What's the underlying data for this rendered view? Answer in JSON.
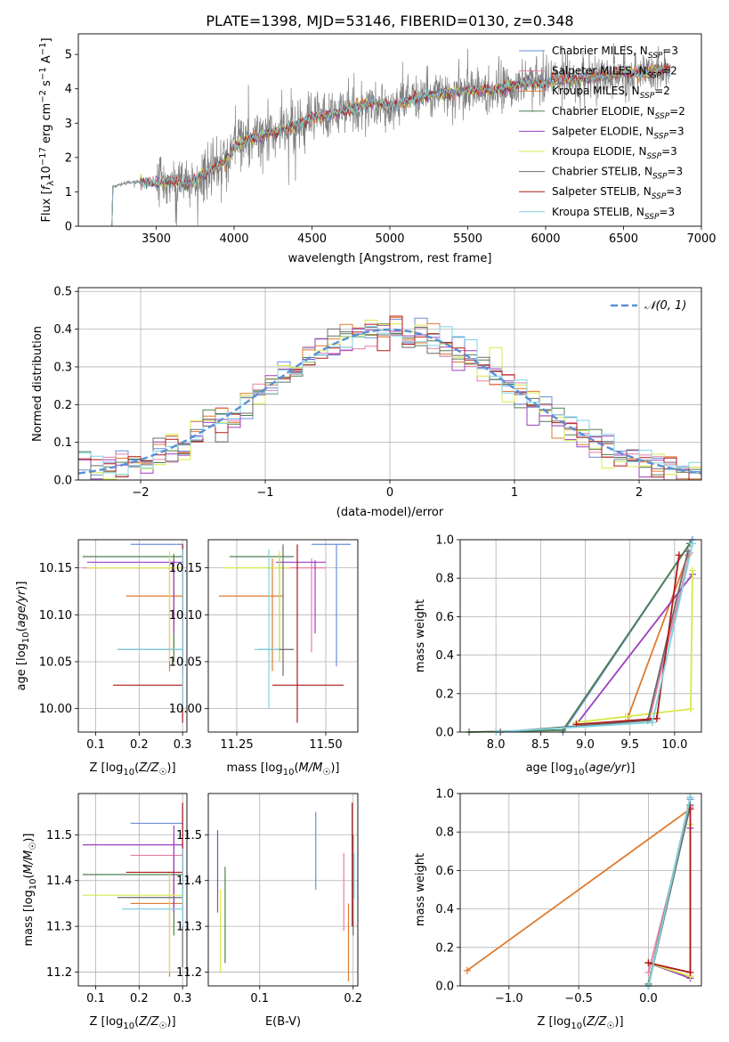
{
  "figure_title": "PLATE=1398, MJD=53146, FIBERID=0130, z=0.348",
  "colors": {
    "chabrier_miles": "#6a8fd8",
    "salpeter_miles": "#e77fa9",
    "kroupa_miles": "#e07a2e",
    "chabrier_elodie": "#4f7f4f",
    "salpeter_elodie": "#9b3fbf",
    "kroupa_elodie": "#d8e84a",
    "chabrier_stelib": "#6b6b6b",
    "salpeter_stelib": "#b01818",
    "kroupa_stelib": "#7fd3e0",
    "data": "#808080",
    "gaussian": "#5a8fd6"
  },
  "legend_spectrum": [
    {
      "key": "chabrier_miles",
      "pre": "Chabrier MILES, N",
      "sub": "SSP",
      "post": "=3"
    },
    {
      "key": "salpeter_miles",
      "pre": "Salpeter MILES, N",
      "sub": "SSP",
      "post": "=2"
    },
    {
      "key": "kroupa_miles",
      "pre": "Kroupa MILES, N",
      "sub": "SSP",
      "post": "=2"
    },
    {
      "key": "chabrier_elodie",
      "pre": "Chabrier ELODIE, N",
      "sub": "SSP",
      "post": "=2"
    },
    {
      "key": "salpeter_elodie",
      "pre": "Salpeter ELODIE, N",
      "sub": "SSP",
      "post": "=3"
    },
    {
      "key": "kroupa_elodie",
      "pre": "Kroupa ELODIE, N",
      "sub": "SSP",
      "post": "=3"
    },
    {
      "key": "chabrier_stelib",
      "pre": "Chabrier STELIB, N",
      "sub": "SSP",
      "post": "=3"
    },
    {
      "key": "salpeter_stelib",
      "pre": "Salpeter STELIB, N",
      "sub": "SSP",
      "post": "=3"
    },
    {
      "key": "kroupa_stelib",
      "pre": "Kroupa STELIB, N",
      "sub": "SSP",
      "post": "=3"
    }
  ],
  "chart_data": [
    {
      "id": "spectrum",
      "type": "line",
      "title": "PLATE=1398, MJD=53146, FIBERID=0130, z=0.348",
      "xlabel": "wavelength [Angstrom, rest frame]",
      "ylabel": "Flux [f_λ 10^-17 erg cm^-2 s^-1 A^-1]",
      "xlim": [
        3000,
        7000
      ],
      "ylim": [
        0,
        5.6
      ],
      "xticks": [
        3500,
        4000,
        4500,
        5000,
        5500,
        6000,
        6500,
        7000
      ],
      "yticks": [
        0,
        1,
        2,
        3,
        4,
        5
      ],
      "grid": false,
      "legend": "top-right",
      "data_range": [
        3210,
        6800
      ],
      "continuum": [
        [
          3210,
          0.0
        ],
        [
          3215,
          0.0
        ],
        [
          3220,
          1.15
        ],
        [
          3300,
          1.25
        ],
        [
          3400,
          1.3
        ],
        [
          3500,
          1.25
        ],
        [
          3600,
          1.35
        ],
        [
          3700,
          1.2
        ],
        [
          3800,
          1.5
        ],
        [
          3900,
          1.75
        ],
        [
          3950,
          1.9
        ],
        [
          4000,
          2.3
        ],
        [
          4100,
          2.55
        ],
        [
          4200,
          2.7
        ],
        [
          4300,
          2.8
        ],
        [
          4400,
          2.95
        ],
        [
          4500,
          3.15
        ],
        [
          4600,
          3.25
        ],
        [
          4700,
          3.35
        ],
        [
          4800,
          3.5
        ],
        [
          4900,
          3.6
        ],
        [
          5000,
          3.5
        ],
        [
          5100,
          3.65
        ],
        [
          5200,
          3.75
        ],
        [
          5300,
          3.85
        ],
        [
          5400,
          3.9
        ],
        [
          5500,
          3.95
        ],
        [
          5600,
          3.95
        ],
        [
          5700,
          4.0
        ],
        [
          5800,
          4.1
        ],
        [
          5900,
          4.2
        ],
        [
          6000,
          4.15
        ],
        [
          6100,
          4.3
        ],
        [
          6200,
          4.25
        ],
        [
          6300,
          4.35
        ],
        [
          6400,
          4.4
        ],
        [
          6500,
          4.5
        ],
        [
          6600,
          4.45
        ],
        [
          6700,
          4.55
        ],
        [
          6800,
          4.6
        ]
      ]
    },
    {
      "id": "residuals",
      "type": "line",
      "xlabel": "(data-model)/error",
      "ylabel": "Normed distribution",
      "xlim": [
        -2.5,
        2.5
      ],
      "ylim": [
        0,
        0.51
      ],
      "xticks": [
        -2,
        -1,
        0,
        1,
        2
      ],
      "xtick_labels": [
        "−2",
        "−1",
        "0",
        "1",
        "2"
      ],
      "yticks": [
        0.0,
        0.1,
        0.2,
        0.3,
        0.4,
        0.5
      ],
      "grid": true,
      "legend": "top-right",
      "legend_label": "𝒩(0, 1)",
      "bin_width": 0.1,
      "gaussian": {
        "mu": 0,
        "sigma": 1
      }
    },
    {
      "id": "age_vs_Z",
      "type": "scatter",
      "xlabel": "Z [log10(Z/Z☉)]",
      "ylabel": "age [log10(age/yr)]",
      "xlim": [
        0.06,
        0.31
      ],
      "ylim": [
        9.975,
        10.18
      ],
      "xticks": [
        0.1,
        0.2,
        0.3
      ],
      "yticks": [
        10.0,
        10.05,
        10.1,
        10.15
      ],
      "grid": true,
      "points": [
        {
          "s": "chabrier_miles",
          "x": 0.3,
          "xlo": 0.18,
          "xhi": 0.3,
          "y": 10.175,
          "ylo": 10.045,
          "yhi": 10.175
        },
        {
          "s": "salpeter_miles",
          "x": 0.28,
          "xlo": 0.07,
          "xhi": 0.3,
          "y": 10.15,
          "ylo": 10.06,
          "yhi": 10.16
        },
        {
          "s": "kroupa_miles",
          "x": 0.27,
          "xlo": 0.17,
          "xhi": 0.3,
          "y": 10.12,
          "ylo": 10.04,
          "yhi": 10.16
        },
        {
          "s": "chabrier_elodie",
          "x": 0.28,
          "xlo": 0.07,
          "xhi": 0.3,
          "y": 10.162,
          "ylo": 10.05,
          "yhi": 10.165
        },
        {
          "s": "salpeter_elodie",
          "x": 0.28,
          "xlo": 0.08,
          "xhi": 0.3,
          "y": 10.156,
          "ylo": 10.08,
          "yhi": 10.158
        },
        {
          "s": "kroupa_elodie",
          "x": 0.27,
          "xlo": 0.08,
          "xhi": 0.3,
          "y": 10.15,
          "ylo": 10.05,
          "yhi": 10.168
        },
        {
          "s": "chabrier_stelib",
          "x": 0.3,
          "xlo": 0.15,
          "xhi": 0.3,
          "y": 10.063,
          "ylo": 10.035,
          "yhi": 10.175
        },
        {
          "s": "salpeter_stelib",
          "x": 0.3,
          "xlo": 0.14,
          "xhi": 0.3,
          "y": 10.025,
          "ylo": 9.985,
          "yhi": 10.175
        },
        {
          "s": "kroupa_stelib",
          "x": 0.3,
          "xlo": 0.15,
          "xhi": 0.3,
          "y": 10.063,
          "ylo": 10.0,
          "yhi": 10.17
        }
      ]
    },
    {
      "id": "age_vs_mass",
      "type": "scatter",
      "xlabel": "mass [log10(M/M☉)]",
      "ylabel": "",
      "xlim": [
        11.17,
        11.59
      ],
      "ylim": [
        9.975,
        10.18
      ],
      "xticks": [
        11.25,
        11.5
      ],
      "yticks": [
        10.0,
        10.05,
        10.1,
        10.15
      ],
      "grid": true,
      "points": [
        {
          "s": "chabrier_miles",
          "x": 11.53,
          "xlo": 11.46,
          "xhi": 11.57,
          "y": 10.175,
          "ylo": 10.045,
          "yhi": 10.175
        },
        {
          "s": "salpeter_miles",
          "x": 11.46,
          "xlo": 11.34,
          "xhi": 11.5,
          "y": 10.15,
          "ylo": 10.06,
          "yhi": 10.16
        },
        {
          "s": "kroupa_miles",
          "x": 11.35,
          "xlo": 11.2,
          "xhi": 11.38,
          "y": 10.12,
          "ylo": 10.04,
          "yhi": 10.16
        },
        {
          "s": "chabrier_elodie",
          "x": 11.37,
          "xlo": 11.23,
          "xhi": 11.41,
          "y": 10.162,
          "ylo": 10.05,
          "yhi": 10.165
        },
        {
          "s": "salpeter_elodie",
          "x": 11.47,
          "xlo": 11.36,
          "xhi": 11.5,
          "y": 10.156,
          "ylo": 10.08,
          "yhi": 10.158
        },
        {
          "s": "kroupa_elodie",
          "x": 11.37,
          "xlo": 11.21,
          "xhi": 11.4,
          "y": 10.15,
          "ylo": 10.05,
          "yhi": 10.168
        },
        {
          "s": "chabrier_stelib",
          "x": 11.38,
          "xlo": 11.31,
          "xhi": 11.41,
          "y": 10.063,
          "ylo": 10.035,
          "yhi": 10.175
        },
        {
          "s": "salpeter_stelib",
          "x": 11.42,
          "xlo": 11.35,
          "xhi": 11.55,
          "y": 10.025,
          "ylo": 9.985,
          "yhi": 10.175
        },
        {
          "s": "kroupa_stelib",
          "x": 11.34,
          "xlo": 11.3,
          "xhi": 11.37,
          "y": 10.063,
          "ylo": 10.0,
          "yhi": 10.17
        }
      ]
    },
    {
      "id": "mass_weight_vs_age",
      "type": "line",
      "xlabel": "age [log10(age/yr)]",
      "ylabel": "mass weight",
      "xlim": [
        7.6,
        10.3
      ],
      "ylim": [
        0,
        1
      ],
      "xticks": [
        8.0,
        8.5,
        9.0,
        9.5,
        10.0
      ],
      "yticks": [
        0.0,
        0.2,
        0.4,
        0.6,
        0.8,
        1.0
      ],
      "grid": true,
      "series": [
        {
          "s": "chabrier_miles",
          "x": [
            8.75,
            10.2
          ],
          "y": [
            0.0,
            1.0
          ]
        },
        {
          "s": "salpeter_miles",
          "x": [
            9.72,
            10.17
          ],
          "y": [
            0.07,
            0.93
          ]
        },
        {
          "s": "kroupa_miles",
          "x": [
            9.48,
            10.15
          ],
          "y": [
            0.08,
            0.92
          ]
        },
        {
          "s": "chabrier_elodie",
          "x": [
            7.7,
            8.75,
            10.17
          ],
          "y": [
            0.0,
            0.01,
            0.98
          ]
        },
        {
          "s": "salpeter_elodie",
          "x": [
            8.9,
            10.2
          ],
          "y": [
            0.04,
            0.82
          ]
        },
        {
          "s": "kroupa_elodie",
          "x": [
            8.9,
            9.45,
            10.18,
            10.2
          ],
          "y": [
            0.05,
            0.08,
            0.12,
            0.84
          ]
        },
        {
          "s": "chabrier_stelib",
          "x": [
            8.05,
            9.7,
            10.15
          ],
          "y": [
            0.0,
            0.06,
            0.94
          ]
        },
        {
          "s": "salpeter_stelib",
          "x": [
            8.9,
            9.8,
            10.05
          ],
          "y": [
            0.04,
            0.07,
            0.92
          ]
        },
        {
          "s": "kroupa_stelib",
          "x": [
            8.0,
            9.75,
            10.2
          ],
          "y": [
            0.0,
            0.05,
            0.98
          ]
        }
      ]
    },
    {
      "id": "mass_vs_Z",
      "type": "scatter",
      "xlabel": "Z [log10(Z/Z☉)]",
      "ylabel": "mass [log10(M/M☉)]",
      "xlim": [
        0.06,
        0.31
      ],
      "ylim": [
        11.17,
        11.59
      ],
      "xticks": [
        0.1,
        0.2,
        0.3
      ],
      "yticks": [
        11.2,
        11.3,
        11.4,
        11.5
      ],
      "grid": true,
      "points": [
        {
          "s": "chabrier_miles",
          "x": 0.3,
          "xlo": 0.18,
          "xhi": 0.3,
          "y": 11.525,
          "ylo": 11.46,
          "yhi": 11.56
        },
        {
          "s": "salpeter_miles",
          "x": 0.28,
          "xlo": 0.18,
          "xhi": 0.3,
          "y": 11.455,
          "ylo": 11.33,
          "yhi": 11.5
        },
        {
          "s": "kroupa_miles",
          "x": 0.27,
          "xlo": 0.18,
          "xhi": 0.3,
          "y": 11.35,
          "ylo": 11.19,
          "yhi": 11.42
        },
        {
          "s": "chabrier_elodie",
          "x": 0.28,
          "xlo": 0.07,
          "xhi": 0.3,
          "y": 11.413,
          "ylo": 11.28,
          "yhi": 11.45
        },
        {
          "s": "salpeter_elodie",
          "x": 0.28,
          "xlo": 0.07,
          "xhi": 0.3,
          "y": 11.478,
          "ylo": 11.33,
          "yhi": 11.52
        },
        {
          "s": "kroupa_elodie",
          "x": 0.27,
          "xlo": 0.07,
          "xhi": 0.3,
          "y": 11.368,
          "ylo": 11.2,
          "yhi": 11.42
        },
        {
          "s": "chabrier_stelib",
          "x": 0.3,
          "xlo": 0.15,
          "xhi": 0.3,
          "y": 11.363,
          "ylo": 11.21,
          "yhi": 11.47
        },
        {
          "s": "salpeter_stelib",
          "x": 0.3,
          "xlo": 0.17,
          "xhi": 0.3,
          "y": 11.418,
          "ylo": 11.38,
          "yhi": 11.57
        },
        {
          "s": "kroupa_stelib",
          "x": 0.3,
          "xlo": 0.16,
          "xhi": 0.3,
          "y": 11.338,
          "ylo": 11.3,
          "yhi": 11.47
        }
      ]
    },
    {
      "id": "mass_vs_ebv",
      "type": "scatter",
      "xlabel": "E(B-V)",
      "ylabel": "",
      "xlim": [
        0.045,
        0.205
      ],
      "ylim": [
        11.17,
        11.59
      ],
      "xticks": [
        0.1,
        0.2
      ],
      "yticks": [
        11.2,
        11.3,
        11.4,
        11.5
      ],
      "grid": true,
      "points": [
        {
          "s": "chabrier_miles",
          "x": 0.16,
          "ylo": 11.38,
          "yhi": 11.55
        },
        {
          "s": "salpeter_miles",
          "x": 0.19,
          "ylo": 11.29,
          "yhi": 11.46
        },
        {
          "s": "kroupa_miles",
          "x": 0.195,
          "ylo": 11.18,
          "yhi": 11.35
        },
        {
          "s": "chabrier_elodie",
          "x": 0.063,
          "ylo": 11.22,
          "yhi": 11.43
        },
        {
          "s": "salpeter_elodie",
          "x": 0.055,
          "ylo": 11.33,
          "yhi": 11.51
        },
        {
          "s": "kroupa_elodie",
          "x": 0.058,
          "ylo": 11.2,
          "yhi": 11.38
        },
        {
          "s": "chabrier_stelib",
          "x": 0.2,
          "ylo": 11.28,
          "yhi": 11.5
        },
        {
          "s": "salpeter_stelib",
          "x": 0.199,
          "ylo": 11.3,
          "yhi": 11.57
        },
        {
          "s": "kroupa_stelib",
          "x": 0.201,
          "ylo": 11.36,
          "yhi": 11.46
        }
      ]
    },
    {
      "id": "mass_weight_vs_Z",
      "type": "line",
      "xlabel": "Z [log10(Z/Z☉)]",
      "ylabel": "mass weight",
      "xlim": [
        -1.35,
        0.38
      ],
      "ylim": [
        0,
        1
      ],
      "xticks": [
        -1.0,
        -0.5,
        0.0
      ],
      "xtick_labels": [
        "−1.0",
        "−0.5",
        "0.0"
      ],
      "yticks": [
        0.0,
        0.2,
        0.4,
        0.6,
        0.8,
        1.0
      ],
      "grid": true,
      "series": [
        {
          "s": "chabrier_miles",
          "x": [
            0.0,
            0.3
          ],
          "y": [
            0.0,
            0.97
          ]
        },
        {
          "s": "salpeter_miles",
          "x": [
            0.0,
            0.3
          ],
          "y": [
            0.07,
            0.93
          ]
        },
        {
          "s": "kroupa_miles",
          "x": [
            -1.3,
            0.3
          ],
          "y": [
            0.08,
            0.92
          ]
        },
        {
          "s": "chabrier_elodie",
          "x": [
            0.0,
            0.3
          ],
          "y": [
            0.01,
            0.98
          ]
        },
        {
          "s": "salpeter_elodie",
          "x": [
            0.0,
            0.3,
            0.3
          ],
          "y": [
            0.12,
            0.04,
            0.82
          ]
        },
        {
          "s": "kroupa_elodie",
          "x": [
            0.0,
            0.3,
            0.3
          ],
          "y": [
            0.12,
            0.05,
            0.84
          ]
        },
        {
          "s": "chabrier_stelib",
          "x": [
            0.0,
            0.3
          ],
          "y": [
            0.0,
            0.94
          ]
        },
        {
          "s": "salpeter_stelib",
          "x": [
            0.0,
            0.3,
            0.3
          ],
          "y": [
            0.12,
            0.07,
            0.92
          ]
        },
        {
          "s": "kroupa_stelib",
          "x": [
            0.0,
            0.3
          ],
          "y": [
            0.0,
            0.98
          ]
        }
      ]
    }
  ]
}
